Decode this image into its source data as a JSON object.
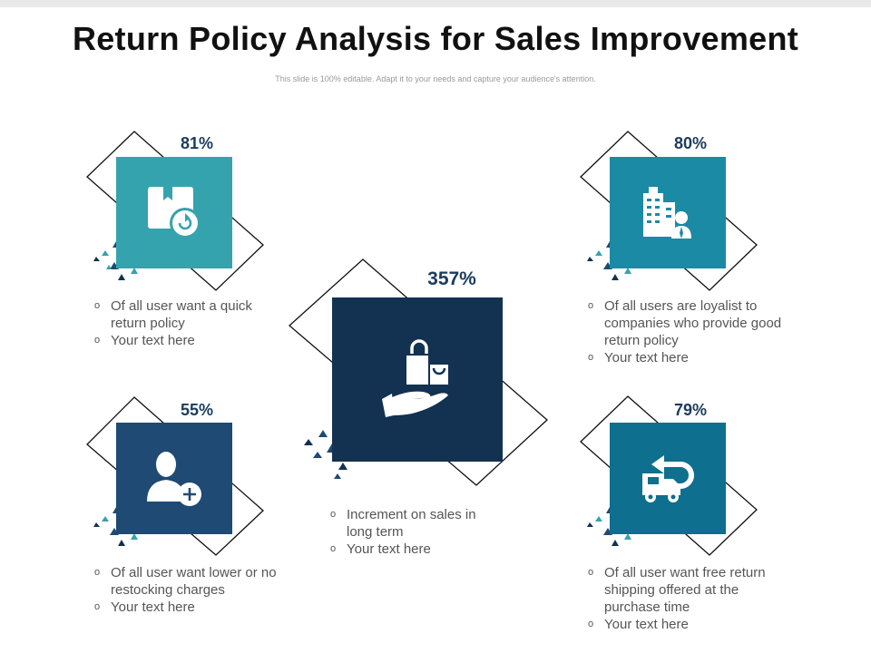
{
  "title": "Return Policy Analysis for Sales Improvement",
  "subtitle": "This slide is 100% editable. Adapt it to your needs and capture your audience's attention.",
  "colors": {
    "teal_light": "#35a3ad",
    "teal_mid": "#1b8aa4",
    "teal_blue": "#0e6f8e",
    "navy": "#1e4a73",
    "dark_navy": "#133151",
    "outline": "#111111"
  },
  "cards": [
    {
      "percent": "81%",
      "icon": "box-return-icon",
      "items": [
        "Of all user want a quick return policy",
        "Your text here"
      ]
    },
    {
      "percent": "80%",
      "icon": "buildings-person-icon",
      "items": [
        "Of all users are loyalist to companies who provide good return policy",
        "Your text here"
      ]
    },
    {
      "percent": "357%",
      "icon": "hand-shopping-bags-icon",
      "items": [
        "Increment on sales in long term",
        "Your text here"
      ]
    },
    {
      "percent": "55%",
      "icon": "user-add-icon",
      "items": [
        "Of all user want lower or no restocking charges",
        "Your text here"
      ]
    },
    {
      "percent": "79%",
      "icon": "delivery-truck-return-icon",
      "items": [
        "Of all user want free return shipping offered at the purchase time",
        "Your text here"
      ]
    }
  ]
}
